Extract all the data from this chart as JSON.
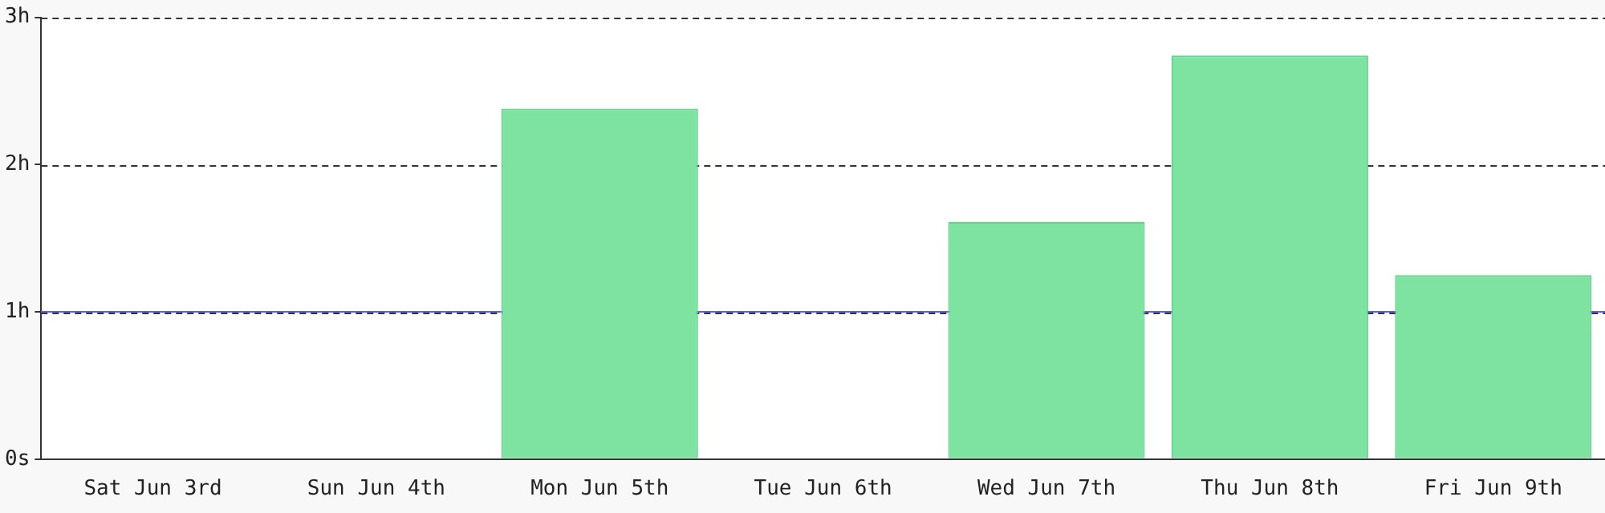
{
  "chart_data": {
    "type": "bar",
    "categories": [
      "Sat Jun 3rd",
      "Sun Jun 4th",
      "Mon Jun 5th",
      "Tue Jun 6th",
      "Wed Jun 7th",
      "Thu Jun 8th",
      "Fri Jun 9th"
    ],
    "values": [
      0,
      0,
      2.38,
      0,
      1.61,
      2.74,
      1.25
    ],
    "color": "#7ee2a0",
    "ylim": [
      0,
      3
    ],
    "yticks": [
      {
        "value": 0,
        "label": "0s"
      },
      {
        "value": 1,
        "label": "1h"
      },
      {
        "value": 2,
        "label": "2h"
      },
      {
        "value": 3,
        "label": "3h"
      }
    ],
    "grid": "y",
    "legend": false,
    "ref_lines": [
      {
        "axis": "y",
        "value": 1,
        "color": "#5b5bff"
      }
    ]
  }
}
